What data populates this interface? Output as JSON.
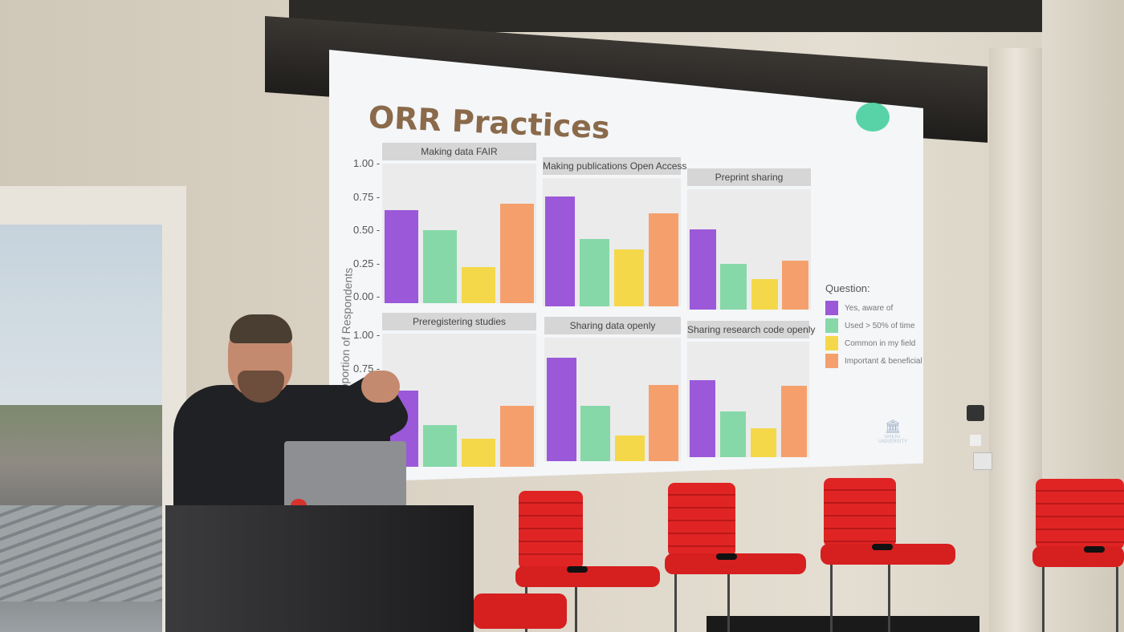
{
  "slide": {
    "title": "ORR Practices",
    "y_axis_label": "Proportion of Respondents",
    "y_ticks": [
      "1.00 -",
      "0.75 -",
      "0.50 -",
      "0.25 -",
      "0.00 -"
    ],
    "panels": [
      {
        "label": "Making data FAIR",
        "values": [
          0.7,
          0.55,
          0.27,
          0.75
        ]
      },
      {
        "label": "Making publications Open Access",
        "values": [
          0.9,
          0.55,
          0.47,
          0.76
        ]
      },
      {
        "label": "Preprint sharing",
        "values": [
          0.7,
          0.4,
          0.27,
          0.43
        ]
      },
      {
        "label": "Preregistering studies",
        "values": [
          0.6,
          0.33,
          0.22,
          0.48
        ]
      },
      {
        "label": "Sharing data openly",
        "values": [
          0.88,
          0.47,
          0.22,
          0.65
        ]
      },
      {
        "label": "Sharing research code openly",
        "values": [
          0.7,
          0.42,
          0.26,
          0.65
        ]
      }
    ],
    "legend": {
      "title": "Question:",
      "items": [
        {
          "label": "Yes, aware of",
          "color": "#9b59d9"
        },
        {
          "label": "Used > 50% of time",
          "color": "#86d8a8"
        },
        {
          "label": "Common in my field",
          "color": "#f4d84a"
        },
        {
          "label": "Important & beneficial",
          "color": "#f5a06c"
        }
      ]
    },
    "logo_text": "GHENT UNIVERSITY"
  },
  "scene": {
    "colors": {
      "chair": "#d61f1f",
      "wall": "#ddd6c8",
      "lectern": "#1c1c1e"
    }
  }
}
